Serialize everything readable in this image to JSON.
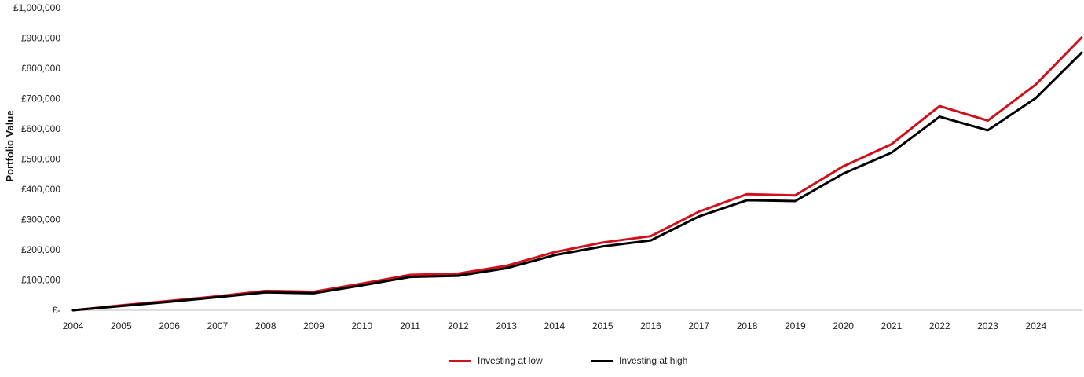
{
  "chart_data": {
    "type": "line",
    "ylabel": "Portfolio Value",
    "xlabel": "",
    "ylim": [
      0,
      1000000
    ],
    "yticks": [
      0,
      100000,
      200000,
      300000,
      400000,
      500000,
      600000,
      700000,
      800000,
      900000,
      1000000
    ],
    "ytick_labels": [
      "£-",
      "£100,000",
      "£200,000",
      "£300,000",
      "£400,000",
      "£500,000",
      "£600,000",
      "£700,000",
      "£800,000",
      "£900,000",
      "£1,000,000"
    ],
    "x_tick_labels": [
      "2004",
      "2005",
      "2006",
      "2007",
      "2008",
      "2009",
      "2010",
      "2011",
      "2012",
      "2013",
      "2014",
      "2015",
      "2016",
      "2017",
      "2018",
      "2019",
      "2020",
      "2021",
      "2022",
      "2023",
      "2024"
    ],
    "x": [
      2004,
      2005,
      2006,
      2007,
      2008,
      2009,
      2010,
      2011,
      2012,
      2013,
      2014,
      2015,
      2016,
      2017,
      2018,
      2019,
      2020,
      2021,
      2022,
      2023,
      2024,
      2024.95
    ],
    "grid": false,
    "legend_position": "bottom-center",
    "series": [
      {
        "name": "Investing at low",
        "color": "#d0101b",
        "values": [
          0,
          16000,
          31000,
          46000,
          64000,
          61000,
          88000,
          117000,
          121000,
          147000,
          192000,
          224000,
          245000,
          326000,
          384000,
          380000,
          476000,
          549000,
          675000,
          627000,
          747000,
          902000
        ]
      },
      {
        "name": "Investing at high",
        "color": "#000000",
        "values": [
          0,
          14000,
          28000,
          43000,
          59000,
          56000,
          82000,
          110000,
          114000,
          139000,
          182000,
          211000,
          231000,
          310000,
          364000,
          361000,
          452000,
          521000,
          640000,
          595000,
          702000,
          852000
        ]
      }
    ]
  }
}
